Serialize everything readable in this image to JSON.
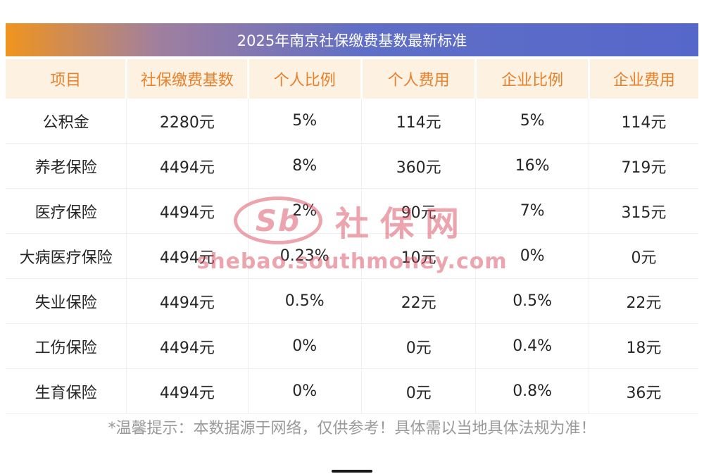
{
  "title": "2025年南京社保缴费基数最新标准",
  "chart_data": {
    "type": "table",
    "title": "2025年南京社保缴费基数最新标准",
    "columns": [
      "项目",
      "社保缴费基数",
      "个人比例",
      "个人费用",
      "企业比例",
      "企业费用"
    ],
    "rows": [
      [
        "公积金",
        "2280元",
        "5%",
        "114元",
        "5%",
        "114元"
      ],
      [
        "养老保险",
        "4494元",
        "8%",
        "360元",
        "16%",
        "719元"
      ],
      [
        "医疗保险",
        "4494元",
        "2%",
        "90元",
        "7%",
        "315元"
      ],
      [
        "大病医疗保险",
        "4494元",
        "0.23%",
        "10元",
        "0%",
        "0元"
      ],
      [
        "失业保险",
        "4494元",
        "0.5%",
        "22元",
        "0.5%",
        "22元"
      ],
      [
        "工伤保险",
        "4494元",
        "0%",
        "0元",
        "0.4%",
        "18元"
      ],
      [
        "生育保险",
        "4494元",
        "0%",
        "0元",
        "0.8%",
        "36元"
      ]
    ]
  },
  "watermark": {
    "logo": "Sb",
    "name": "社保网",
    "url": "shebao.southmoney.com"
  },
  "footer_note": "*温馨提示：本数据源于网络，仅供参考！具体需以当地具体法规为准！",
  "colors": {
    "title_gradient_start": "#f0941e",
    "title_gradient_end": "#5667ca",
    "header_bg": "#fdf1e2",
    "header_text": "#e8812c",
    "body_text": "#262626",
    "row_border": "#efefef",
    "watermark_red": "#d9495e",
    "note_text": "#9a9a9a"
  }
}
